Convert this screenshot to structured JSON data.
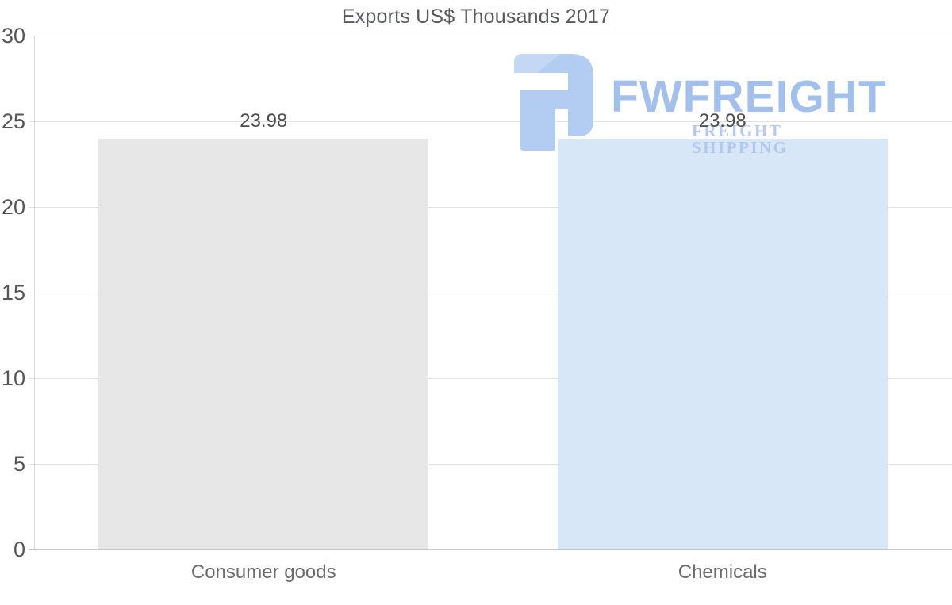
{
  "title": "Exports US$ Thousands 2017",
  "watermark": {
    "brand": "FWFREIGHT",
    "tagline": "FREIGHT SHIPPING",
    "brand_color": "#9cbbec",
    "tagline_color": "#b0c6ef",
    "logo_color": "#adc8f1"
  },
  "chart_data": {
    "type": "bar",
    "title": "Exports US$ Thousands 2017",
    "categories": [
      "Consumer goods",
      "Chemicals"
    ],
    "values": [
      23.98,
      23.98
    ],
    "data_labels": [
      "23.98",
      "23.98"
    ],
    "bar_colors": [
      "#e7e7e7",
      "#d7e7f8"
    ],
    "ylim": [
      0,
      30
    ],
    "yticks": [
      0,
      5,
      10,
      15,
      20,
      25,
      30
    ],
    "xlabel": "",
    "ylabel": "",
    "grid": true,
    "legend": false,
    "gridline_color": "#e3e3e3",
    "baseline_color": "#c8c8c8",
    "axis_line_color": "#d6d6d6"
  }
}
